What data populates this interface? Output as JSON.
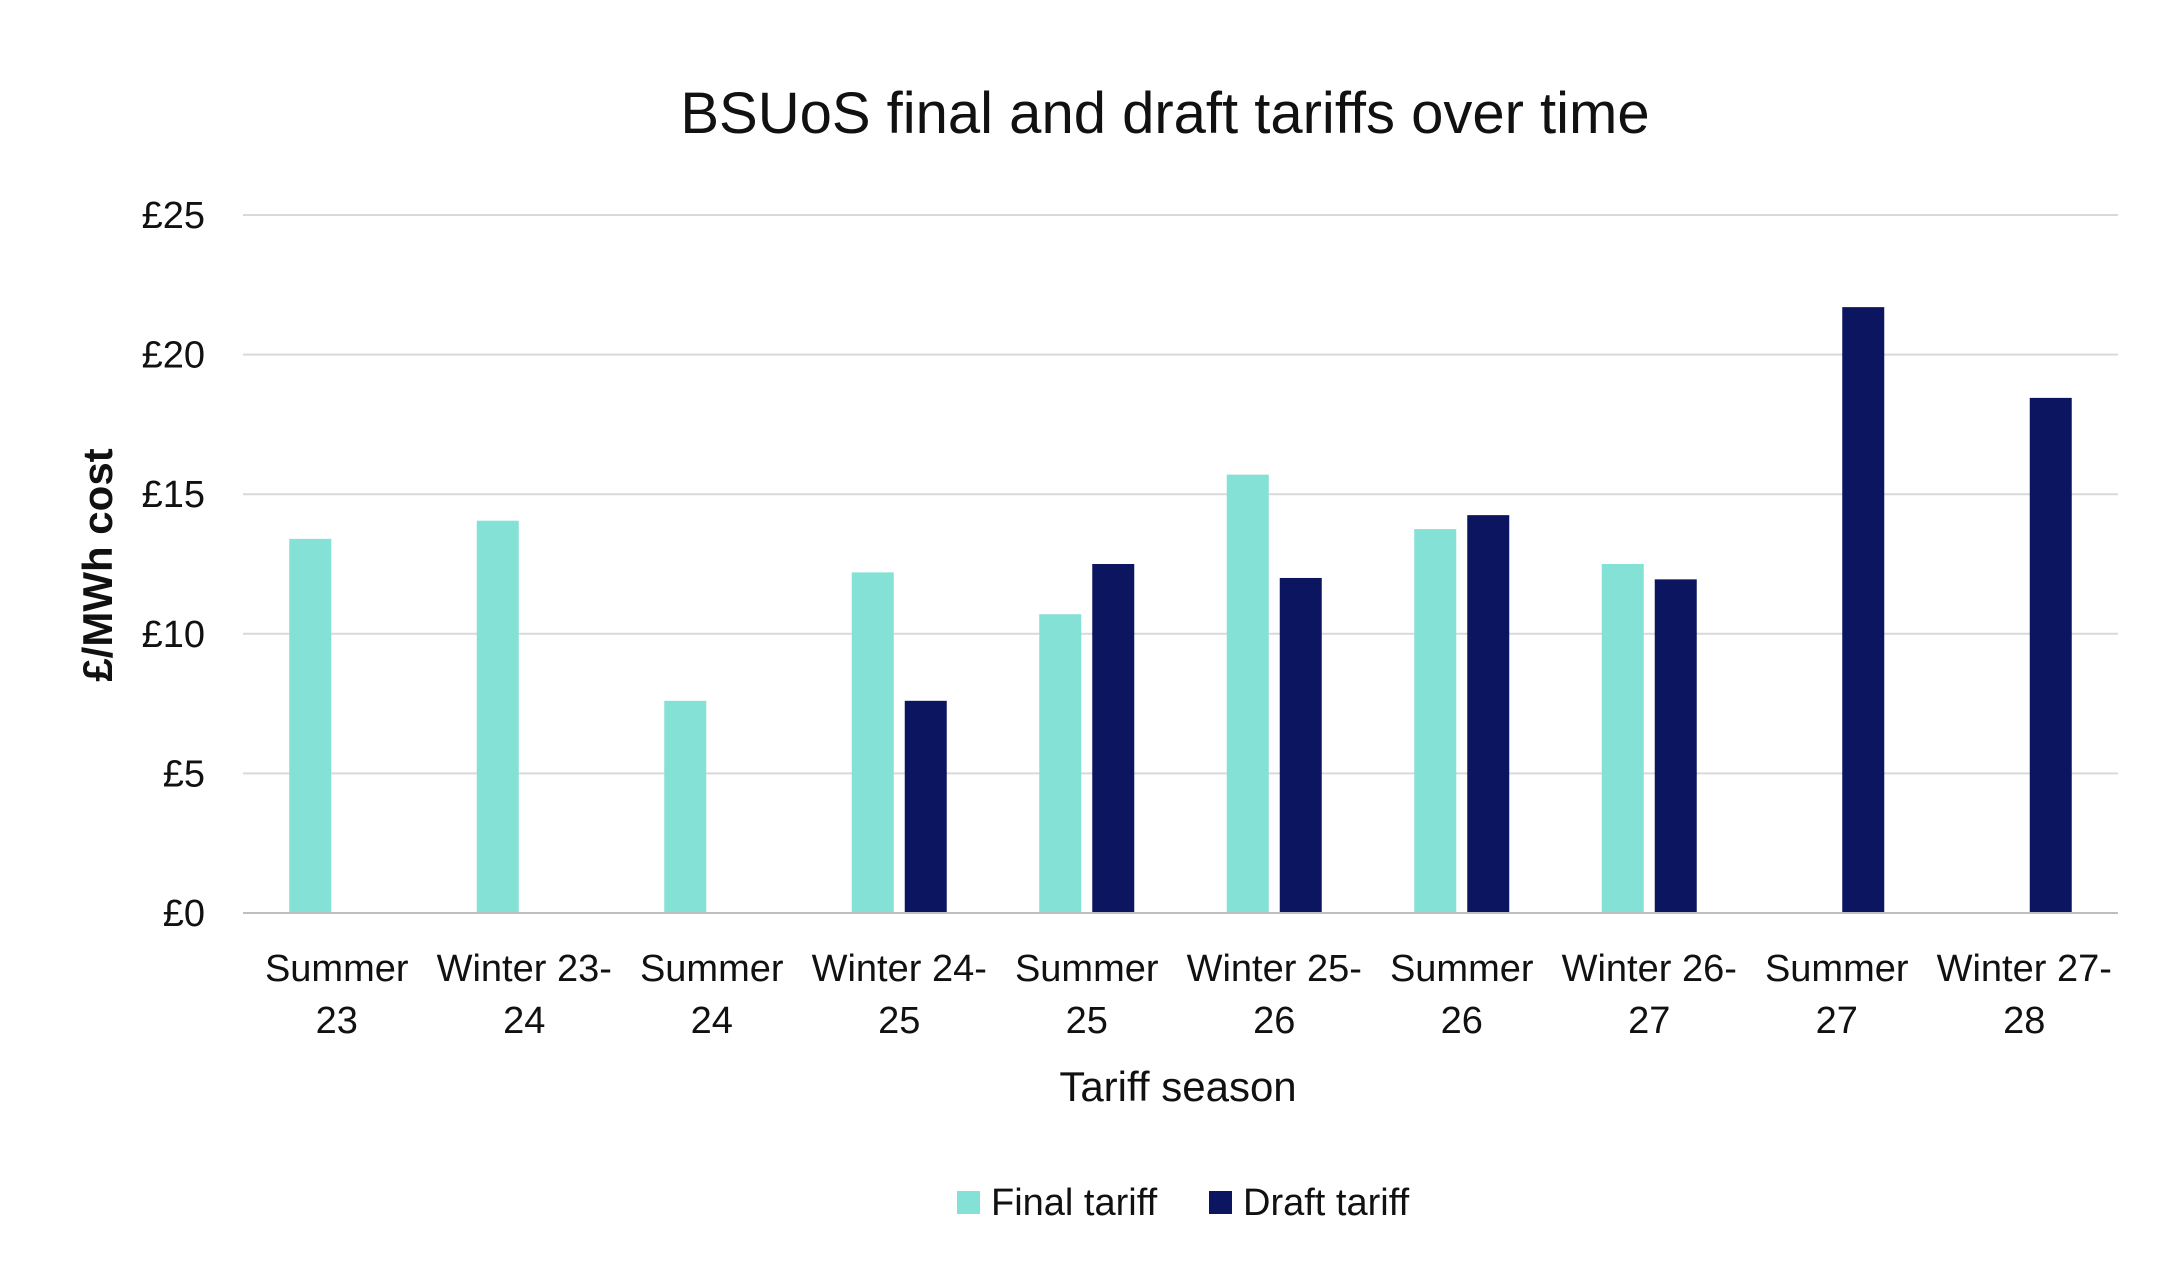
{
  "chart_data": {
    "type": "bar",
    "title": "BSUoS final and draft tariffs over time",
    "xlabel": "Tariff season",
    "ylabel": "£/MWh cost",
    "categories": [
      [
        "Summer",
        "23"
      ],
      [
        "Winter 23-",
        "24"
      ],
      [
        "Summer",
        "24"
      ],
      [
        "Winter 24-",
        "25"
      ],
      [
        "Summer",
        "25"
      ],
      [
        "Winter 25-",
        "26"
      ],
      [
        "Summer",
        "26"
      ],
      [
        "Winter 26-",
        "27"
      ],
      [
        "Summer",
        "27"
      ],
      [
        "Winter 27-",
        "28"
      ]
    ],
    "series": [
      {
        "name": "Final tariff",
        "color": "#83E1D6",
        "values": [
          13.4,
          14.05,
          7.6,
          12.2,
          10.7,
          15.7,
          13.75,
          12.5,
          null,
          null
        ]
      },
      {
        "name": "Draft tariff",
        "color": "#0C1660",
        "values": [
          null,
          null,
          null,
          7.6,
          12.5,
          12.0,
          14.25,
          11.95,
          21.7,
          18.45
        ]
      }
    ],
    "ylim": [
      0,
      25
    ],
    "yticks": [
      0,
      5,
      10,
      15,
      20,
      25
    ],
    "ytick_labels": [
      "£0",
      "£5",
      "£10",
      "£15",
      "£20",
      "£25"
    ],
    "grid": true,
    "legend_position": "bottom"
  }
}
